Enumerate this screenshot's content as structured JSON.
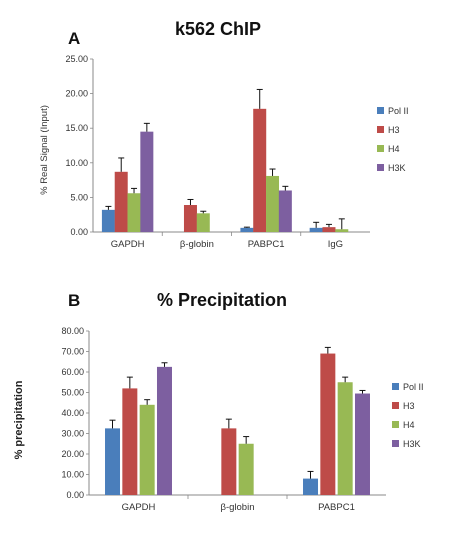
{
  "chart_data": [
    {
      "panel": "A",
      "type": "bar",
      "title": "k562 ChIP",
      "ylabel": "% Real Signal (Input)",
      "xlabel": "",
      "ylim": [
        0,
        25
      ],
      "yticks": [
        "0.00",
        "5.00",
        "10.00",
        "15.00",
        "20.00",
        "25.00"
      ],
      "categories": [
        "GAPDH",
        "β-globin",
        "PABPC1",
        "IgG"
      ],
      "series": [
        {
          "name": "Pol II",
          "color": "#4a7ebb",
          "values": [
            3.2,
            0,
            0.6,
            0.6
          ],
          "errors": [
            0.5,
            0,
            0.1,
            0.8
          ]
        },
        {
          "name": "H3",
          "color": "#be4b48",
          "values": [
            8.7,
            3.9,
            17.8,
            0.7
          ],
          "errors": [
            2.0,
            0.8,
            2.8,
            0.4
          ]
        },
        {
          "name": "H4",
          "color": "#98b954",
          "values": [
            5.6,
            2.7,
            8.1,
            0.4
          ],
          "errors": [
            0.7,
            0.3,
            1.0,
            1.5
          ]
        },
        {
          "name": "H3K",
          "color": "#7d5fa0",
          "values": [
            14.5,
            0,
            6.0,
            0
          ],
          "errors": [
            1.2,
            0,
            0.6,
            0
          ]
        }
      ],
      "legend_position": "right"
    },
    {
      "panel": "B",
      "type": "bar",
      "title": "% Precipitation",
      "ylabel": "% precipitation",
      "xlabel": "",
      "ylim": [
        0,
        80
      ],
      "yticks": [
        "0.00",
        "10.00",
        "20.00",
        "30.00",
        "40.00",
        "50.00",
        "60.00",
        "70.00",
        "80.00"
      ],
      "categories": [
        "GAPDH",
        "β-globin",
        "PABPC1"
      ],
      "series": [
        {
          "name": "Pol II",
          "color": "#4a7ebb",
          "values": [
            32.5,
            0,
            8.0
          ],
          "errors": [
            4.0,
            0,
            3.5
          ]
        },
        {
          "name": "H3",
          "color": "#be4b48",
          "values": [
            52.0,
            32.5,
            69.0
          ],
          "errors": [
            5.5,
            4.5,
            3.0
          ]
        },
        {
          "name": "H4",
          "color": "#98b954",
          "values": [
            44.0,
            25.0,
            55.0
          ],
          "errors": [
            2.5,
            3.5,
            2.5
          ]
        },
        {
          "name": "H3K",
          "color": "#7d5fa0",
          "values": [
            62.5,
            0,
            49.5
          ],
          "errors": [
            2.0,
            0,
            1.5
          ]
        }
      ],
      "legend_position": "right"
    }
  ]
}
